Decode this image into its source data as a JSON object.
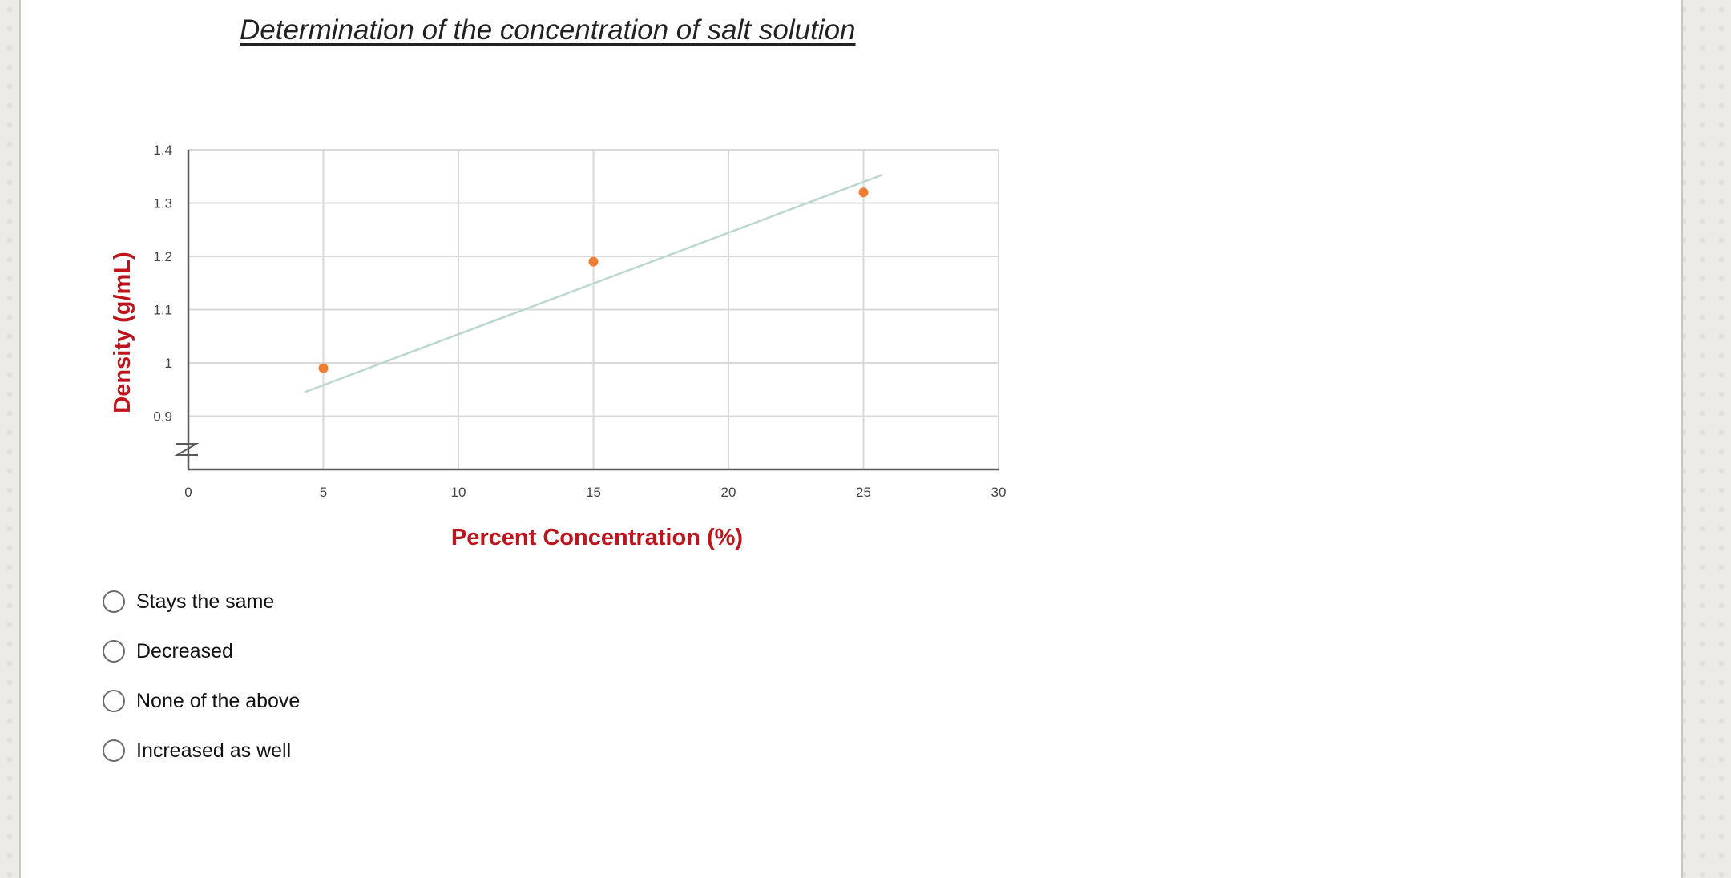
{
  "question": {
    "options": [
      {
        "label": "Stays the same"
      },
      {
        "label": "Decreased"
      },
      {
        "label": "None of the above"
      },
      {
        "label": "Increased as well"
      }
    ]
  },
  "chart_data": {
    "type": "scatter",
    "title": "Determination of the concentration of salt solution",
    "xlabel": "Percent Concentration (%)",
    "ylabel": "Density (g/mL)",
    "xlim": [
      0,
      30
    ],
    "ylim": [
      0.8,
      1.4
    ],
    "x_ticks": [
      "0",
      "5",
      "10",
      "15",
      "20",
      "25",
      "30"
    ],
    "y_ticks": [
      "0.9",
      "1",
      "1.1",
      "1.2",
      "1.3",
      "1.4"
    ],
    "y_axis_break": true,
    "grid": true,
    "series": [
      {
        "x": [
          5,
          15,
          25
        ],
        "y": [
          0.99,
          1.19,
          1.32
        ],
        "color": "#ed7d31"
      }
    ],
    "trendline": {
      "x": [
        4.3,
        25.7
      ],
      "y": [
        0.945,
        1.353
      ],
      "color": "#bcd6d2"
    },
    "colors": {
      "axis_label": "#c0141c",
      "gridline": "#d9d9d9",
      "axis_line": "#595959"
    }
  }
}
